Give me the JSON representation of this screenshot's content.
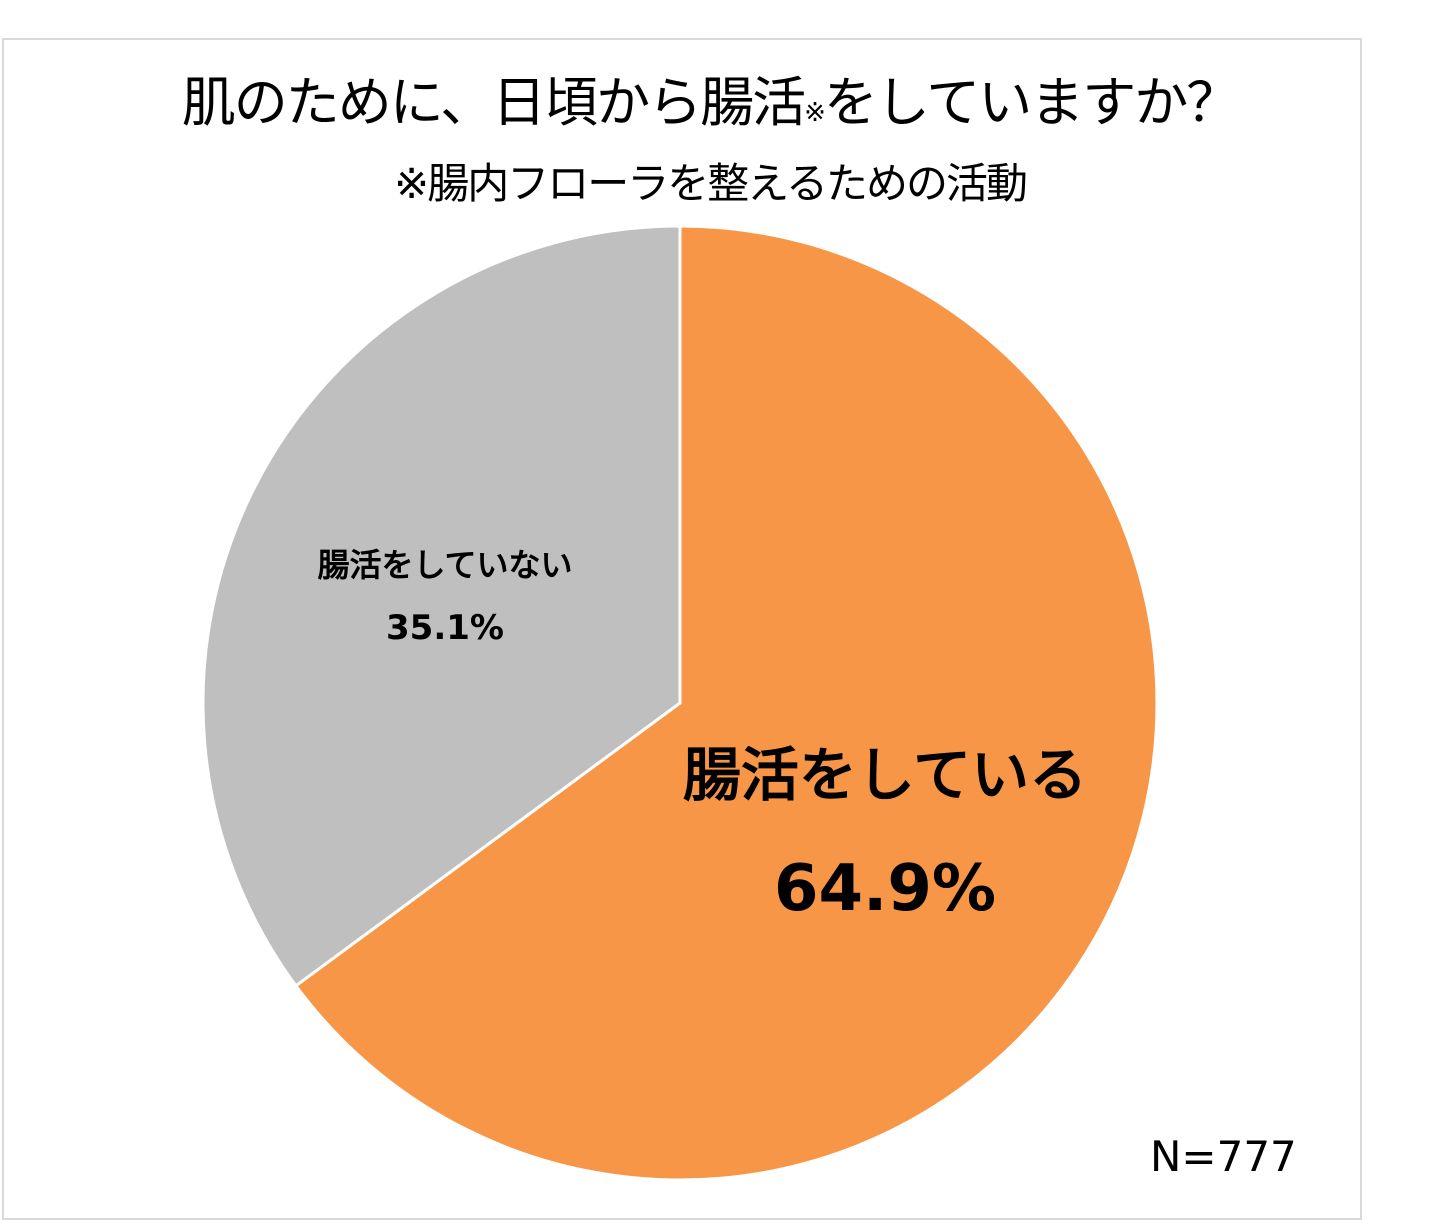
{
  "chart_data": {
    "type": "pie",
    "title": "肌のために、日頃から腸活",
    "title_note_mark": "※",
    "title_suffix": "をしていますか？",
    "subtitle": "※腸内フローラを整えるための活動",
    "start_angle": "12 o'clock, clockwise",
    "slices": [
      {
        "label": "腸活をしている",
        "value": 64.9,
        "value_label": "64.9%",
        "color": "#F79646"
      },
      {
        "label": "腸活をしていない",
        "value": 35.1,
        "value_label": "35.1%",
        "color": "#BFBFBF"
      }
    ],
    "sample_size": "N=777"
  }
}
